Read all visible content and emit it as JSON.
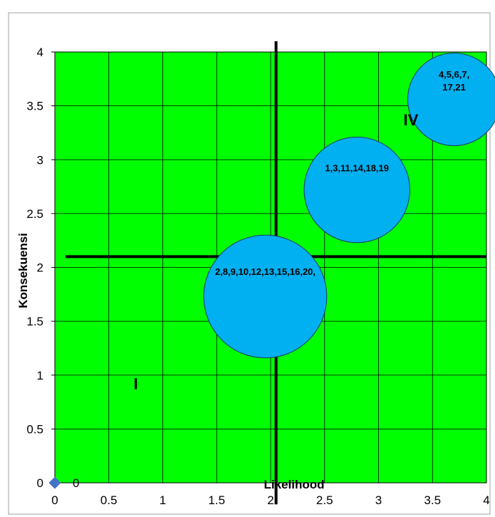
{
  "chart_data": {
    "type": "scatter",
    "title": "",
    "xlabel": "Likelihood",
    "ylabel": "Konsekuensi",
    "xlim": [
      0,
      4
    ],
    "ylim": [
      0,
      4
    ],
    "x_ticks": [
      "0",
      "0.5",
      "1",
      "1.5",
      "2",
      "2.5",
      "3",
      "3.5",
      "4"
    ],
    "y_ticks": [
      "0",
      "0.5",
      "1",
      "1.5",
      "2",
      "2.5",
      "3",
      "3.5",
      "4"
    ],
    "grid": true,
    "plot_background": "#00ff00",
    "grid_color": "#000000",
    "bubble_color": "#00b0f0",
    "divider_lines": {
      "vertical": {
        "x": 2.05,
        "y_from": -0.2,
        "y_to": 4.1
      },
      "horizontal": {
        "y": 2.1,
        "x_from": 0.1,
        "x_to": 4.0
      }
    },
    "bubbles": [
      {
        "x": 1.95,
        "y": 1.73,
        "rx": 0.57,
        "ry": 0.57,
        "label": [
          "2,8,9,10,12,13,15,16,20,"
        ]
      },
      {
        "x": 2.8,
        "y": 2.72,
        "rx": 0.49,
        "ry": 0.49,
        "label": [
          "1,3,11,14,18,19"
        ]
      },
      {
        "x": 3.7,
        "y": 3.56,
        "rx": 0.43,
        "ry": 0.43,
        "label": [
          "4,5,6,7,",
          "17,21"
        ]
      }
    ],
    "marker_point": {
      "x": 0,
      "y": 0,
      "label": "0"
    },
    "quadrant_labels": [
      {
        "text": "I",
        "x": 0.75,
        "y": 0.87
      },
      {
        "text": "IV",
        "x": 3.3,
        "y": 3.32
      }
    ]
  }
}
